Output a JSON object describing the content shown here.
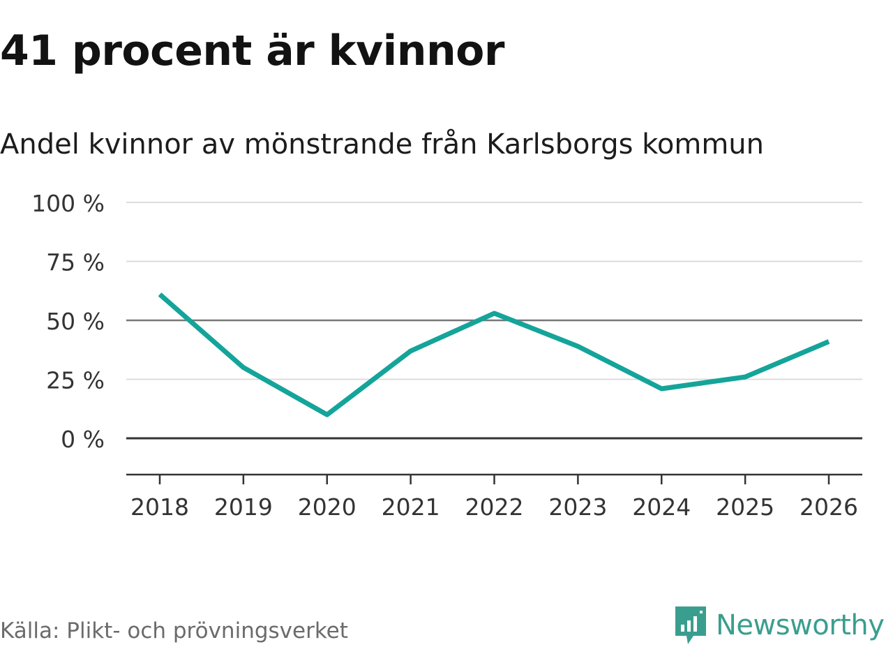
{
  "title": "41 procent är kvinnor",
  "subtitle": "Andel kvinnor av mönstrande från Karlsborgs kommun",
  "source": "Källa: Plikt- och prövningsverket",
  "brand": {
    "name": "Newsworthy",
    "icon": "newsworthy-logo-icon",
    "color": "#3a9e8e"
  },
  "chart_data": {
    "type": "line",
    "title": "41 procent är kvinnor",
    "subtitle": "Andel kvinnor av mönstrande från Karlsborgs kommun",
    "x": [
      "2018",
      "2019",
      "2020",
      "2021",
      "2022",
      "2023",
      "2024",
      "2025",
      "2026"
    ],
    "series": [
      {
        "values": [
          61,
          30,
          10,
          37,
          53,
          39,
          21,
          26,
          41
        ],
        "color": "#14a49a"
      }
    ],
    "ylim": [
      -15,
      100
    ],
    "yticks": [
      100,
      75,
      50,
      25,
      0
    ],
    "ytick_labels": [
      "100 %",
      "75 %",
      "50 %",
      "25 %",
      "0 %"
    ],
    "xlabel": "",
    "ylabel": "",
    "grid": true,
    "reference_lines": [
      50,
      0
    ]
  }
}
